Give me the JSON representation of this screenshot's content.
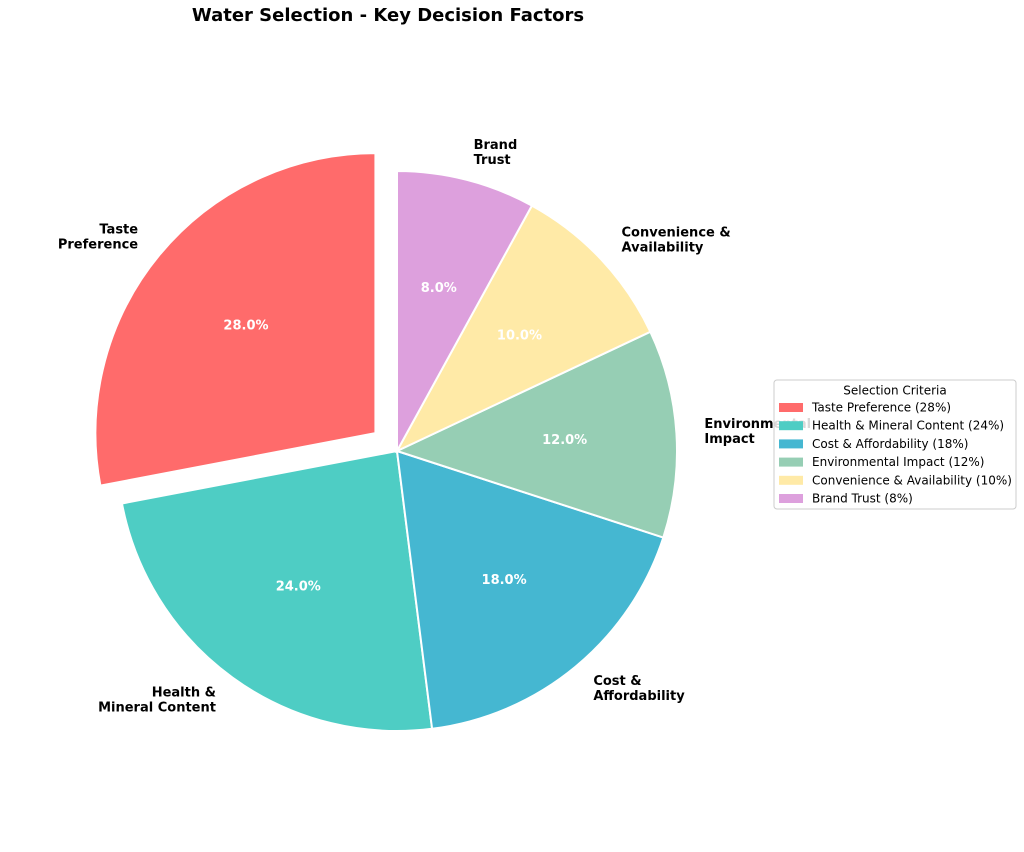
{
  "chart_data": {
    "type": "pie",
    "title": "Water Selection - Key Decision Factors",
    "categories": [
      [
        "Taste",
        "Preference"
      ],
      [
        "Health &",
        "Mineral Content"
      ],
      [
        "Cost &",
        "Affordability"
      ],
      [
        "Environmental",
        "Impact"
      ],
      [
        "Convenience &",
        "Availability"
      ],
      [
        "Brand",
        "Trust"
      ]
    ],
    "values": [
      28,
      24,
      18,
      12,
      10,
      8
    ],
    "value_labels": [
      "28.0%",
      "24.0%",
      "18.0%",
      "12.0%",
      "10.0%",
      "8.0%"
    ],
    "colors": [
      "#ff6b6b",
      "#4ecdc4",
      "#45b7d1",
      "#96ceb4",
      "#ffeaa7",
      "#dda0dd"
    ],
    "explode": [
      0.1,
      0,
      0,
      0,
      0,
      0
    ],
    "start_angle": 90,
    "legend": {
      "title": "Selection Criteria",
      "position": "right",
      "labels": [
        "Taste Preference (28%)",
        "Health & Mineral Content (24%)",
        "Cost & Affordability (18%)",
        "Environmental Impact (12%)",
        "Convenience & Availability (10%)",
        "Brand Trust (8%)"
      ]
    }
  }
}
